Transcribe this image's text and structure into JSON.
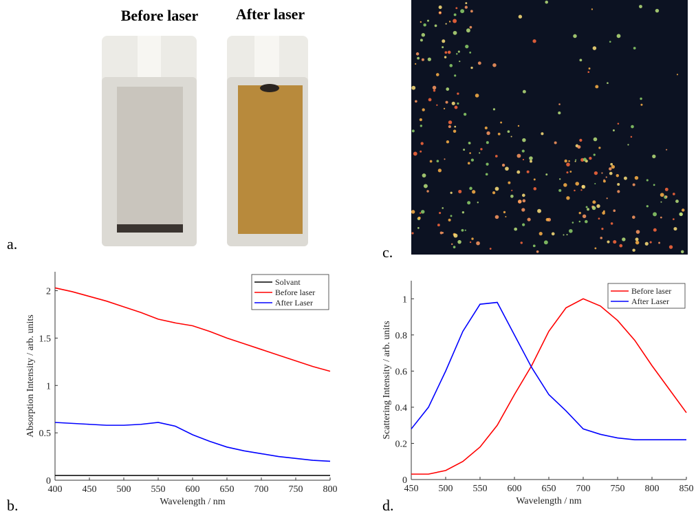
{
  "panels": {
    "a": {
      "label": "a.",
      "titles": [
        "Before laser",
        "After laser"
      ]
    },
    "c": {
      "label": "c."
    }
  },
  "chart_data": [
    {
      "type": "line",
      "panel_label": "b.",
      "xlabel": "Wavelength / nm",
      "ylabel": "Absorption Intensity / arb. units",
      "x": [
        400,
        425,
        450,
        475,
        500,
        525,
        550,
        575,
        600,
        625,
        650,
        675,
        700,
        725,
        750,
        775,
        800
      ],
      "series": [
        {
          "name": "Solvant",
          "color": "#000000",
          "values": [
            0.05,
            0.05,
            0.05,
            0.05,
            0.05,
            0.05,
            0.05,
            0.05,
            0.05,
            0.05,
            0.05,
            0.05,
            0.05,
            0.05,
            0.05,
            0.05,
            0.05
          ]
        },
        {
          "name": "Before laser",
          "color": "#ff0000",
          "values": [
            2.03,
            1.99,
            1.94,
            1.89,
            1.83,
            1.77,
            1.7,
            1.66,
            1.63,
            1.57,
            1.5,
            1.44,
            1.38,
            1.32,
            1.26,
            1.2,
            1.15
          ]
        },
        {
          "name": "After Laser",
          "color": "#0000ff",
          "values": [
            0.61,
            0.6,
            0.59,
            0.58,
            0.58,
            0.59,
            0.61,
            0.57,
            0.48,
            0.41,
            0.35,
            0.31,
            0.28,
            0.25,
            0.23,
            0.21,
            0.2
          ]
        }
      ],
      "xlim": [
        400,
        800
      ],
      "xticks": [
        400,
        450,
        500,
        550,
        600,
        650,
        700,
        750,
        800
      ],
      "ylim": [
        0,
        2.2
      ],
      "yticks": [
        0,
        0.5,
        1,
        1.5,
        2
      ],
      "legend": "upper right"
    },
    {
      "type": "line",
      "panel_label": "d.",
      "xlabel": "Wavelength / nm",
      "ylabel": "Scattering Intensity / arb. units",
      "x": [
        450,
        475,
        500,
        525,
        550,
        575,
        600,
        625,
        650,
        675,
        700,
        725,
        750,
        775,
        800,
        825,
        850
      ],
      "series": [
        {
          "name": "Before laser",
          "color": "#ff0000",
          "values": [
            0.03,
            0.03,
            0.05,
            0.1,
            0.18,
            0.3,
            0.47,
            0.63,
            0.82,
            0.95,
            1.0,
            0.96,
            0.88,
            0.77,
            0.63,
            0.5,
            0.37
          ]
        },
        {
          "name": "After Laser",
          "color": "#0000ff",
          "values": [
            0.28,
            0.4,
            0.6,
            0.82,
            0.97,
            0.98,
            0.8,
            0.62,
            0.47,
            0.38,
            0.28,
            0.25,
            0.23,
            0.22,
            0.22,
            0.22,
            0.22
          ]
        }
      ],
      "xlim": [
        450,
        850
      ],
      "xticks": [
        450,
        500,
        550,
        600,
        650,
        700,
        750,
        800,
        850
      ],
      "ylim": [
        0,
        1.1
      ],
      "yticks": [
        0,
        0.2,
        0.4,
        0.6,
        0.8,
        1
      ],
      "legend": "upper right"
    }
  ]
}
